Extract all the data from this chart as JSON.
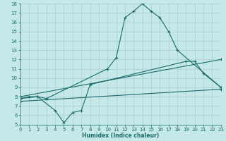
{
  "xlabel": "Humidex (Indice chaleur)",
  "bg_color": "#c5e8e8",
  "grid_color": "#aacfcf",
  "line_color": "#1a6b6b",
  "xlim": [
    0,
    23
  ],
  "ylim": [
    5,
    18
  ],
  "xticks": [
    0,
    1,
    2,
    3,
    4,
    5,
    6,
    7,
    8,
    9,
    10,
    11,
    12,
    13,
    14,
    15,
    16,
    17,
    18,
    19,
    20,
    21,
    22,
    23
  ],
  "yticks": [
    5,
    6,
    7,
    8,
    9,
    10,
    11,
    12,
    13,
    14,
    15,
    16,
    17,
    18
  ],
  "curve1_x": [
    0,
    1,
    2,
    3,
    10,
    11,
    12,
    13,
    14,
    15,
    16,
    17,
    18,
    23
  ],
  "curve1_y": [
    7.8,
    8.0,
    8.0,
    7.8,
    11.0,
    12.2,
    16.5,
    17.2,
    18.0,
    17.2,
    16.5,
    15.0,
    13.0,
    9.0
  ],
  "curve2_x": [
    0,
    2,
    4,
    5,
    6,
    7,
    8,
    19,
    20,
    21,
    23
  ],
  "curve2_y": [
    7.8,
    8.0,
    6.5,
    5.2,
    6.3,
    6.5,
    9.3,
    11.8,
    11.8,
    10.5,
    9.0
  ],
  "line1_x": [
    0,
    23
  ],
  "line1_y": [
    7.5,
    8.8
  ],
  "line2_x": [
    0,
    23
  ],
  "line2_y": [
    8.0,
    12.0
  ]
}
